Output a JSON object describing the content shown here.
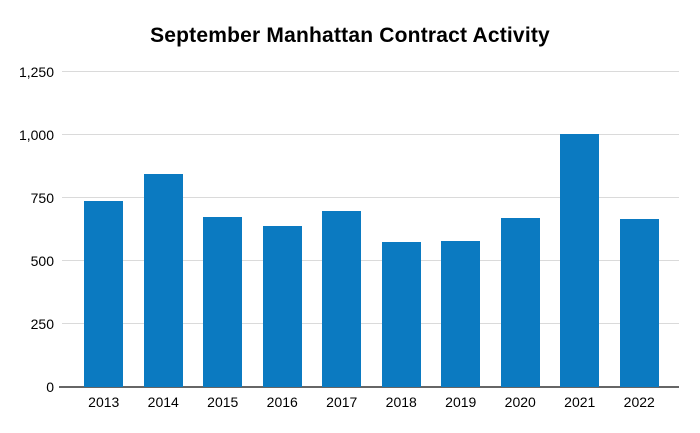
{
  "title": "September Manhattan Contract Activity",
  "colors": {
    "background": "#ffffff",
    "bar": "#0b7ac1",
    "gridline": "#dadada",
    "axis_line": "#666666",
    "title_text": "#000000",
    "tick_text": "#000000"
  },
  "chart_data": {
    "type": "bar",
    "title": "September Manhattan Contract Activity",
    "categories": [
      "2013",
      "2014",
      "2015",
      "2016",
      "2017",
      "2018",
      "2019",
      "2020",
      "2021",
      "2022"
    ],
    "values": [
      740,
      845,
      675,
      640,
      700,
      575,
      580,
      670,
      1005,
      665
    ],
    "xlabel": "",
    "ylabel": "",
    "ylim": [
      0,
      1250
    ],
    "yticks": [
      0,
      250,
      500,
      750,
      1000,
      1250
    ],
    "ytick_labels": [
      "0",
      "250",
      "500",
      "750",
      "1,000",
      "1,250"
    ],
    "grid": true,
    "legend_position": "none",
    "bar_color": "#0b7ac1"
  }
}
